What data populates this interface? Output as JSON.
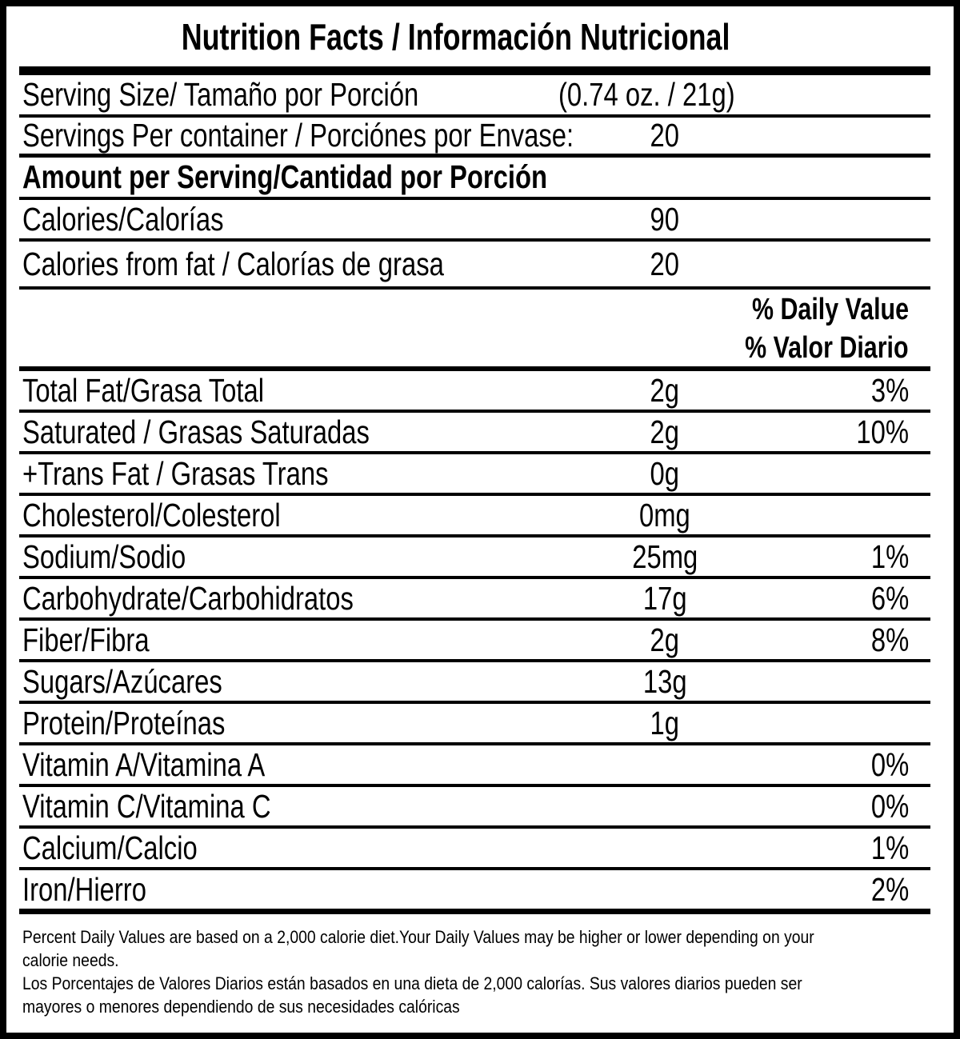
{
  "title": "Nutrition Facts / Información Nutricional",
  "serving_size": {
    "label": "Serving Size/ Tamaño por Porción",
    "value": "(0.74 oz. / 21g)"
  },
  "servings_per_container": {
    "label": "Servings Per container / Porciónes por Envase:",
    "value": "20"
  },
  "section_header": "Amount per Serving/Cantidad por Porción",
  "calories": {
    "label": "Calories/Calorías",
    "value": "90"
  },
  "calories_from_fat": {
    "label": "Calories from fat / Calorías de grasa",
    "value": "20"
  },
  "daily_value_header": {
    "en": "% Daily Value",
    "es": "% Valor Diario"
  },
  "nutrients": [
    {
      "label": "Total Fat/Grasa Total",
      "value": "2g",
      "pct": "3%"
    },
    {
      "label": "Saturated / Grasas Saturadas",
      "value": "2g",
      "pct": "10%"
    },
    {
      "label": "+Trans Fat / Grasas Trans",
      "value": "0g",
      "pct": ""
    },
    {
      "label": "Cholesterol/Colesterol",
      "value": "0mg",
      "pct": ""
    },
    {
      "label": "Sodium/Sodio",
      "value": "25mg",
      "pct": "1%"
    },
    {
      "label": "Carbohydrate/Carbohidratos",
      "value": "17g",
      "pct": "6%"
    },
    {
      "label": "Fiber/Fibra",
      "value": "2g",
      "pct": "8%"
    },
    {
      "label": "Sugars/Azúcares",
      "value": "13g",
      "pct": ""
    },
    {
      "label": "Protein/Proteínas",
      "value": "1g",
      "pct": ""
    },
    {
      "label": "Vitamin A/Vitamina A",
      "value": "",
      "pct": "0%"
    },
    {
      "label": "Vitamin C/Vitamina C",
      "value": "",
      "pct": "0%"
    },
    {
      "label": "Calcium/Calcio",
      "value": "",
      "pct": "1%"
    },
    {
      "label": "Iron/Hierro",
      "value": "",
      "pct": "2%"
    }
  ],
  "footnote": {
    "lines": [
      "Percent Daily Values are based on a 2,000 calorie diet.Your Daily Values may be higher or lower depending on your",
      "calorie needs.",
      "Los Porcentajes de Valores Diarios están basados en una dieta de 2,000 calorías. Sus valores diarios pueden ser",
      "mayores o menores dependiendo de sus necesidades calóricas"
    ]
  },
  "colors": {
    "ink": "#000000",
    "paper": "#ffffff"
  }
}
